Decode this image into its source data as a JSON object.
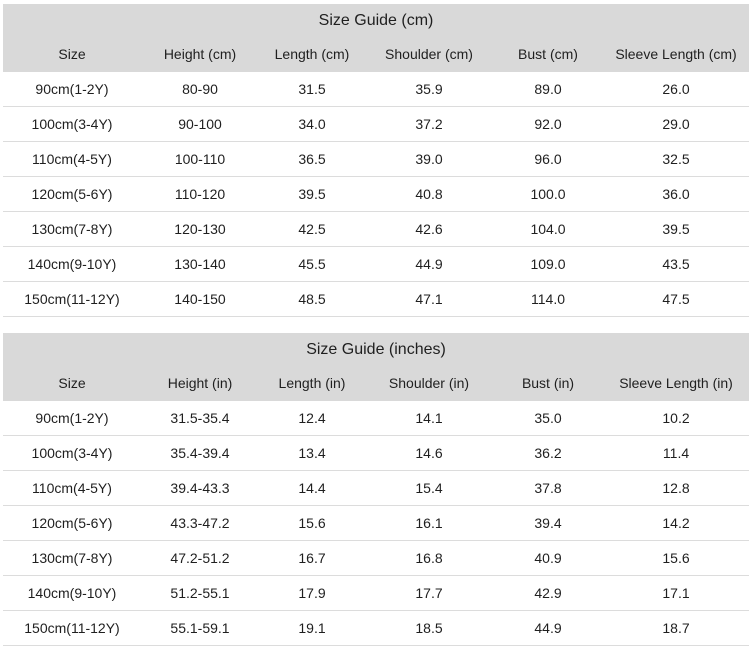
{
  "tables": [
    {
      "title": "Size Guide (cm)",
      "headers": [
        "Size",
        "Height (cm)",
        "Length (cm)",
        "Shoulder (cm)",
        "Bust (cm)",
        "Sleeve Length (cm)"
      ],
      "rows": [
        [
          "90cm(1-2Y)",
          "80-90",
          "31.5",
          "35.9",
          "89.0",
          "26.0"
        ],
        [
          "100cm(3-4Y)",
          "90-100",
          "34.0",
          "37.2",
          "92.0",
          "29.0"
        ],
        [
          "110cm(4-5Y)",
          "100-110",
          "36.5",
          "39.0",
          "96.0",
          "32.5"
        ],
        [
          "120cm(5-6Y)",
          "110-120",
          "39.5",
          "40.8",
          "100.0",
          "36.0"
        ],
        [
          "130cm(7-8Y)",
          "120-130",
          "42.5",
          "42.6",
          "104.0",
          "39.5"
        ],
        [
          "140cm(9-10Y)",
          "130-140",
          "45.5",
          "44.9",
          "109.0",
          "43.5"
        ],
        [
          "150cm(11-12Y)",
          "140-150",
          "48.5",
          "47.1",
          "114.0",
          "47.5"
        ]
      ]
    },
    {
      "title": "Size Guide (inches)",
      "headers": [
        "Size",
        "Height (in)",
        "Length (in)",
        "Shoulder (in)",
        "Bust (in)",
        "Sleeve Length (in)"
      ],
      "rows": [
        [
          "90cm(1-2Y)",
          "31.5-35.4",
          "12.4",
          "14.1",
          "35.0",
          "10.2"
        ],
        [
          "100cm(3-4Y)",
          "35.4-39.4",
          "13.4",
          "14.6",
          "36.2",
          "11.4"
        ],
        [
          "110cm(4-5Y)",
          "39.4-43.3",
          "14.4",
          "15.4",
          "37.8",
          "12.8"
        ],
        [
          "120cm(5-6Y)",
          "43.3-47.2",
          "15.6",
          "16.1",
          "39.4",
          "14.2"
        ],
        [
          "130cm(7-8Y)",
          "47.2-51.2",
          "16.7",
          "16.8",
          "40.9",
          "15.6"
        ],
        [
          "140cm(9-10Y)",
          "51.2-55.1",
          "17.9",
          "17.7",
          "42.9",
          "17.1"
        ],
        [
          "150cm(11-12Y)",
          "55.1-59.1",
          "19.1",
          "18.5",
          "44.9",
          "18.7"
        ]
      ]
    }
  ]
}
